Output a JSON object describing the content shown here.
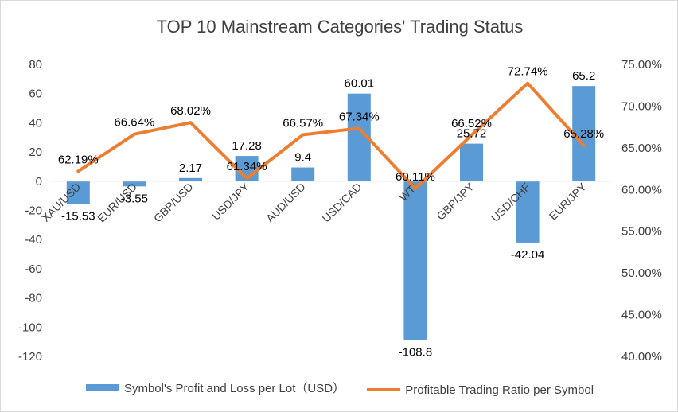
{
  "chart_data": {
    "type": "bar",
    "title": "TOP 10 Mainstream Categories' Trading Status",
    "categories": [
      "XAU/USD",
      "EUR/USD",
      "GBP/USD",
      "USD/JPY",
      "AUD/USD",
      "USD/CAD",
      "WTI",
      "GBP/JPY",
      "USD/CHF",
      "EUR/JPY"
    ],
    "series": [
      {
        "name": "Symbol's Profit and Loss per Lot（USD）",
        "type": "bar",
        "axis": "left",
        "color": "#5b9bd5",
        "values": [
          -15.53,
          -3.55,
          2.17,
          17.28,
          9.4,
          60.01,
          -108.8,
          25.72,
          -42.04,
          65.2
        ],
        "labels": [
          "-15.53",
          "-3.55",
          "2.17",
          "17.28",
          "9.4",
          "60.01",
          "-108.8",
          "25.72",
          "-42.04",
          "65.2"
        ]
      },
      {
        "name": "Profitable Trading Ratio per Symbol",
        "type": "line",
        "axis": "right",
        "color": "#ed7d31",
        "values": [
          62.19,
          66.64,
          68.02,
          61.34,
          66.57,
          67.34,
          60.11,
          66.52,
          72.74,
          65.28
        ],
        "labels": [
          "62.19%",
          "66.64%",
          "68.02%",
          "61.34%",
          "66.57%",
          "67.34%",
          "60.11%",
          "66.52%",
          "72.74%",
          "65.28%"
        ]
      }
    ],
    "y_left": {
      "min": -120,
      "max": 80,
      "ticks": [
        "80",
        "60",
        "40",
        "20",
        "0",
        "-20",
        "-40",
        "-60",
        "-80",
        "-100",
        "-120"
      ]
    },
    "y_right": {
      "min": 40,
      "max": 75,
      "ticks": [
        "75.00%",
        "70.00%",
        "65.00%",
        "60.00%",
        "55.00%",
        "50.00%",
        "45.00%",
        "40.00%"
      ]
    },
    "grid": false,
    "legend_position": "bottom"
  }
}
